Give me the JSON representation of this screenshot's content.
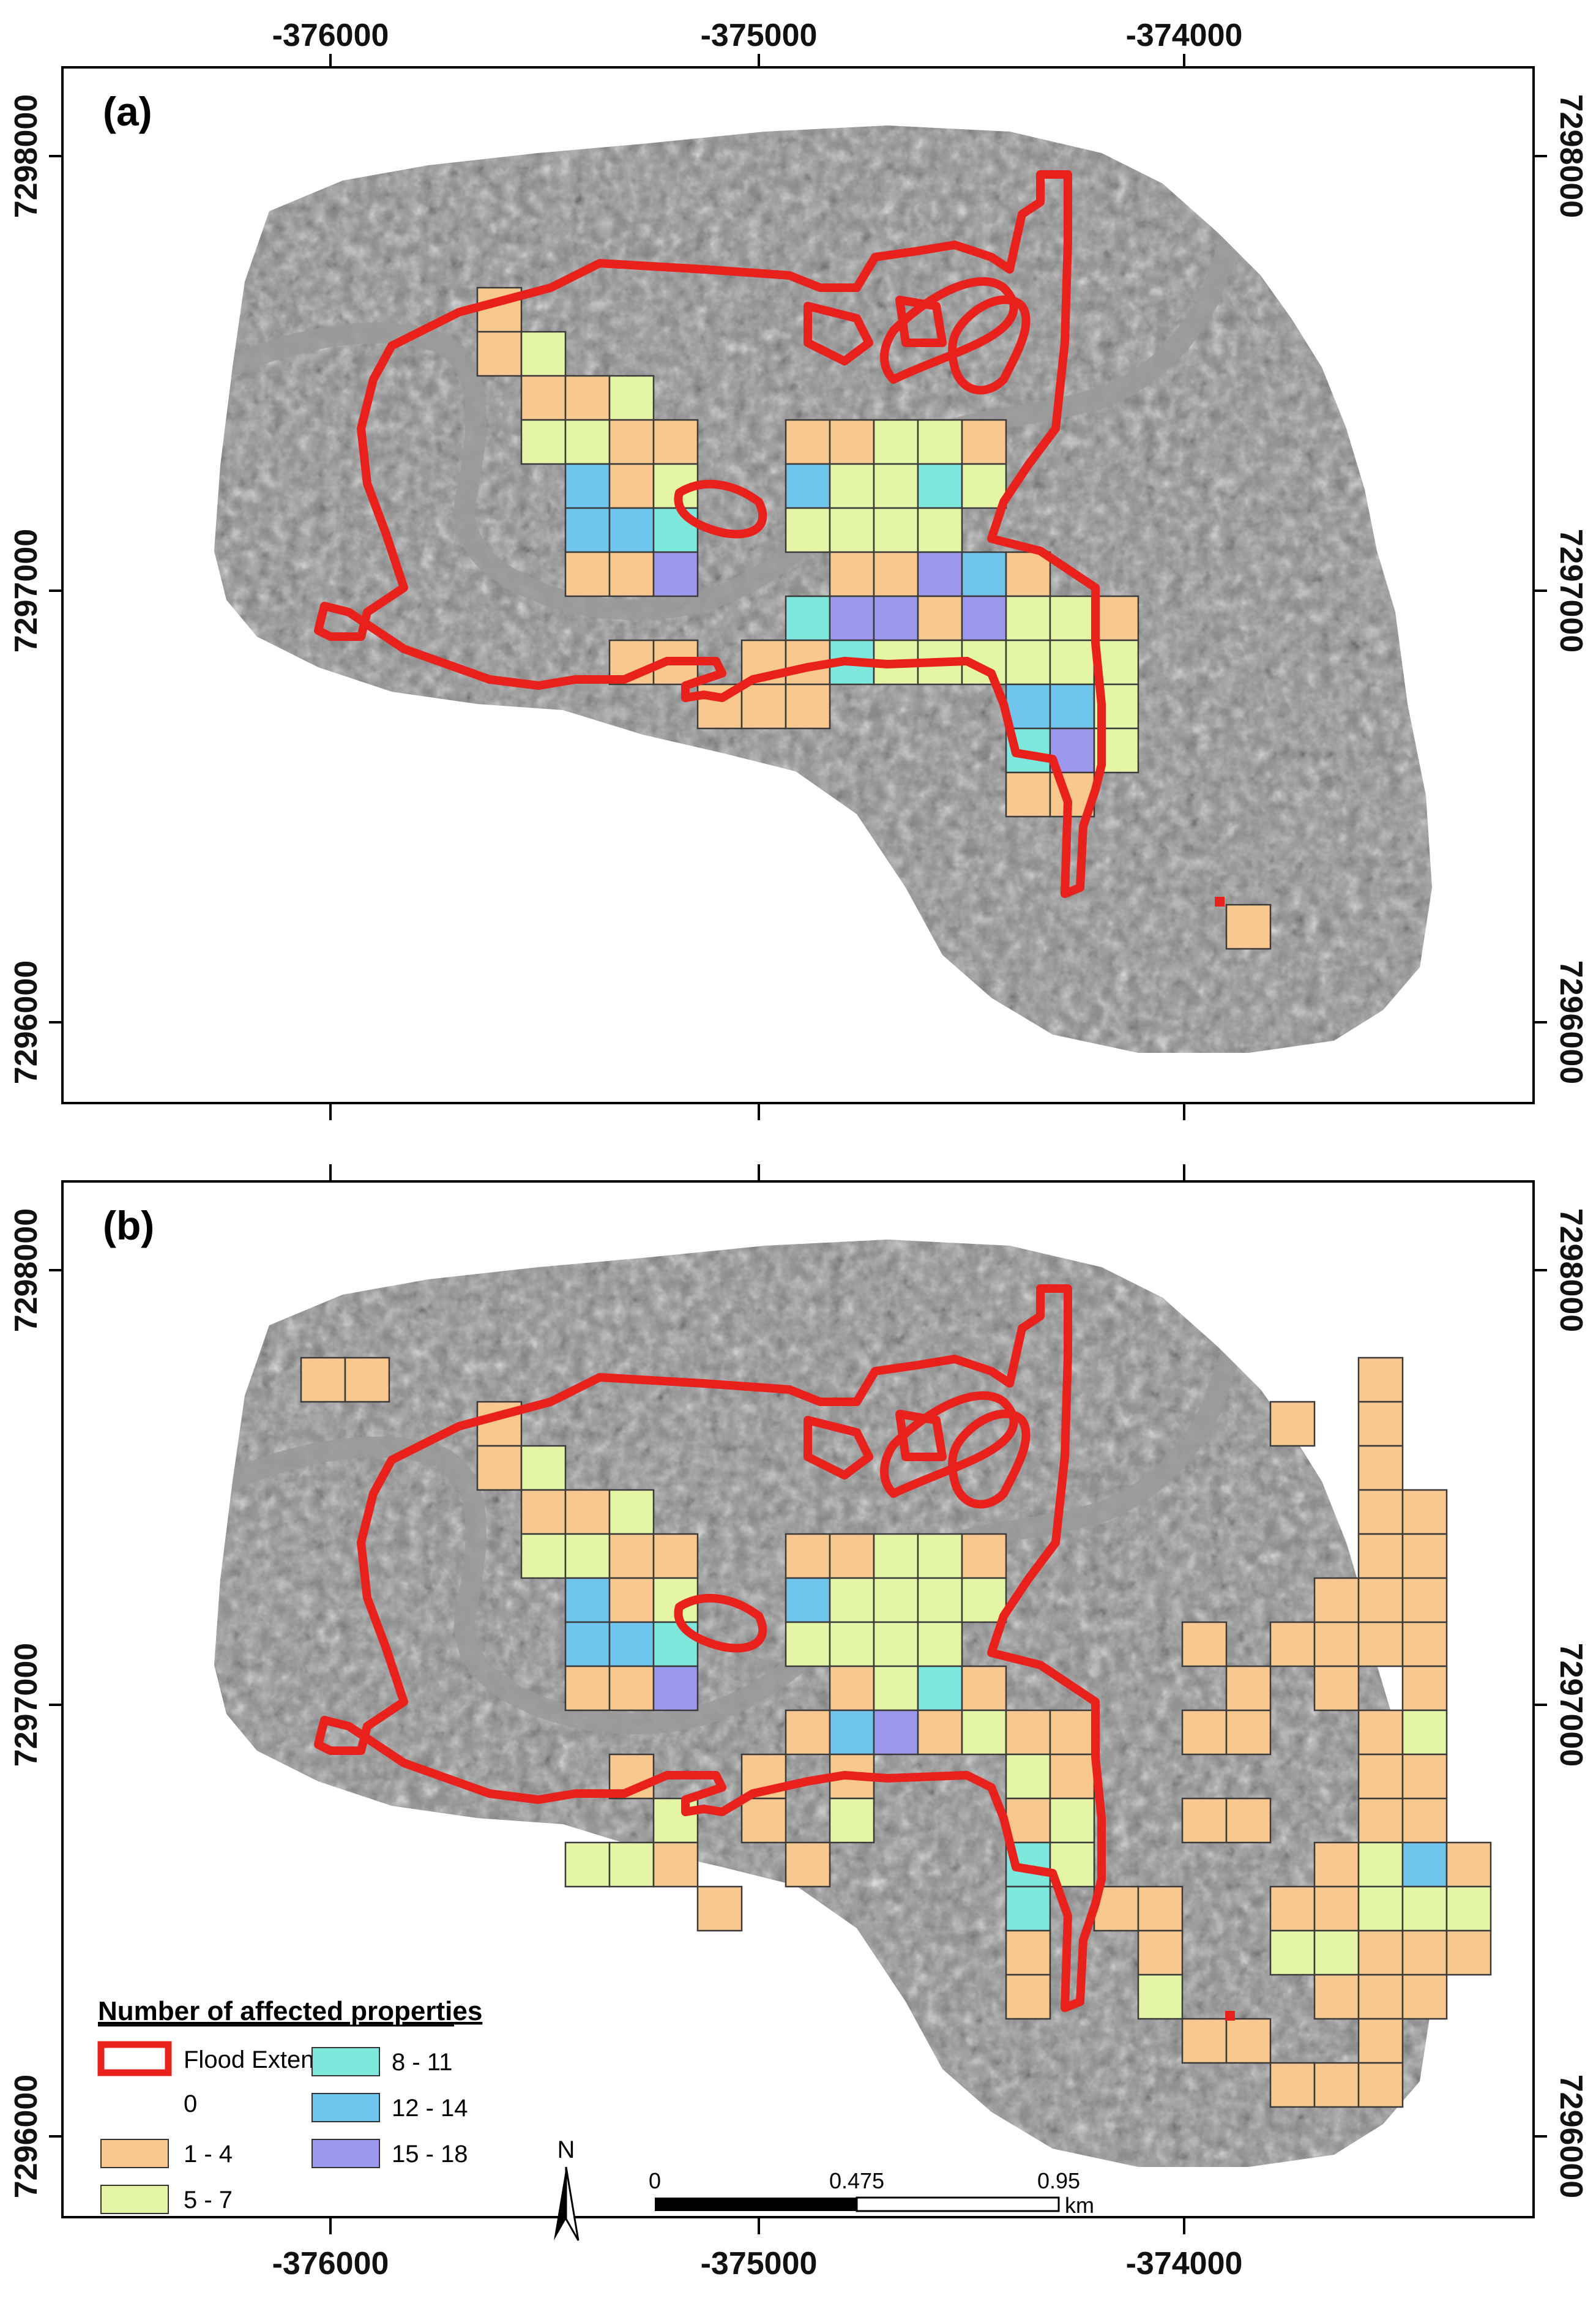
{
  "panels": [
    {
      "label": "(a)",
      "grid_cells": [
        {
          "col": 0,
          "row": 0,
          "class": "1-4"
        },
        {
          "col": 0,
          "row": 1,
          "class": "1-4"
        },
        {
          "col": 1,
          "row": 1,
          "class": "5-7"
        },
        {
          "col": 1,
          "row": 2,
          "class": "1-4"
        },
        {
          "col": 2,
          "row": 2,
          "class": "1-4"
        },
        {
          "col": 3,
          "row": 2,
          "class": "5-7"
        },
        {
          "col": 1,
          "row": 3,
          "class": "5-7"
        },
        {
          "col": 2,
          "row": 3,
          "class": "5-7"
        },
        {
          "col": 3,
          "row": 3,
          "class": "1-4"
        },
        {
          "col": 4,
          "row": 3,
          "class": "1-4"
        },
        {
          "col": 2,
          "row": 4,
          "class": "12-14"
        },
        {
          "col": 3,
          "row": 4,
          "class": "1-4"
        },
        {
          "col": 4,
          "row": 4,
          "class": "5-7"
        },
        {
          "col": 2,
          "row": 5,
          "class": "12-14"
        },
        {
          "col": 3,
          "row": 5,
          "class": "12-14"
        },
        {
          "col": 4,
          "row": 5,
          "class": "8-11"
        },
        {
          "col": 2,
          "row": 6,
          "class": "1-4"
        },
        {
          "col": 3,
          "row": 6,
          "class": "1-4"
        },
        {
          "col": 4,
          "row": 6,
          "class": "15-18"
        },
        {
          "col": 7,
          "row": 3,
          "class": "1-4"
        },
        {
          "col": 8,
          "row": 3,
          "class": "1-4"
        },
        {
          "col": 9,
          "row": 3,
          "class": "5-7"
        },
        {
          "col": 10,
          "row": 3,
          "class": "5-7"
        },
        {
          "col": 11,
          "row": 3,
          "class": "1-4"
        },
        {
          "col": 7,
          "row": 4,
          "class": "12-14"
        },
        {
          "col": 8,
          "row": 4,
          "class": "5-7"
        },
        {
          "col": 9,
          "row": 4,
          "class": "5-7"
        },
        {
          "col": 10,
          "row": 4,
          "class": "8-11"
        },
        {
          "col": 11,
          "row": 4,
          "class": "5-7"
        },
        {
          "col": 7,
          "row": 5,
          "class": "5-7"
        },
        {
          "col": 8,
          "row": 5,
          "class": "5-7"
        },
        {
          "col": 9,
          "row": 5,
          "class": "5-7"
        },
        {
          "col": 10,
          "row": 5,
          "class": "5-7"
        },
        {
          "col": 8,
          "row": 6,
          "class": "1-4"
        },
        {
          "col": 9,
          "row": 6,
          "class": "1-4"
        },
        {
          "col": 10,
          "row": 6,
          "class": "15-18"
        },
        {
          "col": 11,
          "row": 6,
          "class": "12-14"
        },
        {
          "col": 12,
          "row": 6,
          "class": "1-4"
        },
        {
          "col": 7,
          "row": 7,
          "class": "8-11"
        },
        {
          "col": 8,
          "row": 7,
          "class": "15-18"
        },
        {
          "col": 9,
          "row": 7,
          "class": "15-18"
        },
        {
          "col": 10,
          "row": 7,
          "class": "1-4"
        },
        {
          "col": 11,
          "row": 7,
          "class": "15-18"
        },
        {
          "col": 12,
          "row": 7,
          "class": "5-7"
        },
        {
          "col": 13,
          "row": 7,
          "class": "5-7"
        },
        {
          "col": 14,
          "row": 7,
          "class": "1-4"
        },
        {
          "col": 3,
          "row": 8,
          "class": "1-4"
        },
        {
          "col": 4,
          "row": 8,
          "class": "1-4"
        },
        {
          "col": 6,
          "row": 8,
          "class": "1-4"
        },
        {
          "col": 7,
          "row": 8,
          "class": "1-4"
        },
        {
          "col": 8,
          "row": 8,
          "class": "8-11"
        },
        {
          "col": 9,
          "row": 8,
          "class": "5-7"
        },
        {
          "col": 10,
          "row": 8,
          "class": "5-7"
        },
        {
          "col": 11,
          "row": 8,
          "class": "5-7"
        },
        {
          "col": 12,
          "row": 8,
          "class": "5-7"
        },
        {
          "col": 13,
          "row": 8,
          "class": "5-7"
        },
        {
          "col": 14,
          "row": 8,
          "class": "5-7"
        },
        {
          "col": 5,
          "row": 9,
          "class": "1-4"
        },
        {
          "col": 6,
          "row": 9,
          "class": "1-4"
        },
        {
          "col": 7,
          "row": 9,
          "class": "1-4"
        },
        {
          "col": 12,
          "row": 9,
          "class": "12-14"
        },
        {
          "col": 13,
          "row": 9,
          "class": "12-14"
        },
        {
          "col": 14,
          "row": 9,
          "class": "5-7"
        },
        {
          "col": 12,
          "row": 10,
          "class": "8-11"
        },
        {
          "col": 13,
          "row": 10,
          "class": "15-18"
        },
        {
          "col": 14,
          "row": 10,
          "class": "5-7"
        },
        {
          "col": 12,
          "row": 11,
          "class": "1-4"
        },
        {
          "col": 13,
          "row": 11,
          "class": "1-4"
        },
        {
          "col": 17,
          "row": 14,
          "class": "1-4"
        }
      ]
    },
    {
      "label": "(b)",
      "grid_cells": [
        {
          "col": -4,
          "row": -1,
          "class": "1-4"
        },
        {
          "col": -3,
          "row": -1,
          "class": "1-4"
        },
        {
          "col": 0,
          "row": 0,
          "class": "1-4"
        },
        {
          "col": 0,
          "row": 1,
          "class": "1-4"
        },
        {
          "col": 1,
          "row": 1,
          "class": "5-7"
        },
        {
          "col": 1,
          "row": 2,
          "class": "1-4"
        },
        {
          "col": 2,
          "row": 2,
          "class": "1-4"
        },
        {
          "col": 3,
          "row": 2,
          "class": "5-7"
        },
        {
          "col": 1,
          "row": 3,
          "class": "5-7"
        },
        {
          "col": 2,
          "row": 3,
          "class": "5-7"
        },
        {
          "col": 3,
          "row": 3,
          "class": "1-4"
        },
        {
          "col": 4,
          "row": 3,
          "class": "1-4"
        },
        {
          "col": 2,
          "row": 4,
          "class": "12-14"
        },
        {
          "col": 3,
          "row": 4,
          "class": "1-4"
        },
        {
          "col": 4,
          "row": 4,
          "class": "5-7"
        },
        {
          "col": 2,
          "row": 5,
          "class": "12-14"
        },
        {
          "col": 3,
          "row": 5,
          "class": "12-14"
        },
        {
          "col": 4,
          "row": 5,
          "class": "8-11"
        },
        {
          "col": 2,
          "row": 6,
          "class": "1-4"
        },
        {
          "col": 3,
          "row": 6,
          "class": "1-4"
        },
        {
          "col": 4,
          "row": 6,
          "class": "15-18"
        },
        {
          "col": 7,
          "row": 3,
          "class": "1-4"
        },
        {
          "col": 8,
          "row": 3,
          "class": "1-4"
        },
        {
          "col": 9,
          "row": 3,
          "class": "5-7"
        },
        {
          "col": 10,
          "row": 3,
          "class": "5-7"
        },
        {
          "col": 11,
          "row": 3,
          "class": "1-4"
        },
        {
          "col": 7,
          "row": 4,
          "class": "12-14"
        },
        {
          "col": 8,
          "row": 4,
          "class": "5-7"
        },
        {
          "col": 9,
          "row": 4,
          "class": "5-7"
        },
        {
          "col": 10,
          "row": 4,
          "class": "5-7"
        },
        {
          "col": 11,
          "row": 4,
          "class": "5-7"
        },
        {
          "col": 7,
          "row": 5,
          "class": "5-7"
        },
        {
          "col": 8,
          "row": 5,
          "class": "5-7"
        },
        {
          "col": 9,
          "row": 5,
          "class": "5-7"
        },
        {
          "col": 10,
          "row": 5,
          "class": "5-7"
        },
        {
          "col": 8,
          "row": 6,
          "class": "1-4"
        },
        {
          "col": 9,
          "row": 6,
          "class": "5-7"
        },
        {
          "col": 10,
          "row": 6,
          "class": "8-11"
        },
        {
          "col": 11,
          "row": 6,
          "class": "1-4"
        },
        {
          "col": 7,
          "row": 7,
          "class": "1-4"
        },
        {
          "col": 8,
          "row": 7,
          "class": "12-14"
        },
        {
          "col": 9,
          "row": 7,
          "class": "15-18"
        },
        {
          "col": 10,
          "row": 7,
          "class": "1-4"
        },
        {
          "col": 11,
          "row": 7,
          "class": "5-7"
        },
        {
          "col": 12,
          "row": 7,
          "class": "1-4"
        },
        {
          "col": 13,
          "row": 7,
          "class": "1-4"
        },
        {
          "col": 3,
          "row": 8,
          "class": "1-4"
        },
        {
          "col": 6,
          "row": 8,
          "class": "1-4"
        },
        {
          "col": 8,
          "row": 8,
          "class": "1-4"
        },
        {
          "col": 12,
          "row": 8,
          "class": "5-7"
        },
        {
          "col": 13,
          "row": 8,
          "class": "1-4"
        },
        {
          "col": 4,
          "row": 9,
          "class": "5-7"
        },
        {
          "col": 6,
          "row": 9,
          "class": "1-4"
        },
        {
          "col": 8,
          "row": 9,
          "class": "5-7"
        },
        {
          "col": 12,
          "row": 9,
          "class": "1-4"
        },
        {
          "col": 13,
          "row": 9,
          "class": "5-7"
        },
        {
          "col": 2,
          "row": 10,
          "class": "5-7"
        },
        {
          "col": 3,
          "row": 10,
          "class": "5-7"
        },
        {
          "col": 4,
          "row": 10,
          "class": "1-4"
        },
        {
          "col": 7,
          "row": 10,
          "class": "1-4"
        },
        {
          "col": 12,
          "row": 10,
          "class": "8-11"
        },
        {
          "col": 13,
          "row": 10,
          "class": "5-7"
        },
        {
          "col": 5,
          "row": 11,
          "class": "1-4"
        },
        {
          "col": 12,
          "row": 11,
          "class": "8-11"
        },
        {
          "col": 14,
          "row": 11,
          "class": "1-4"
        },
        {
          "col": 15,
          "row": 11,
          "class": "1-4"
        },
        {
          "col": 12,
          "row": 12,
          "class": "1-4"
        },
        {
          "col": 15,
          "row": 12,
          "class": "1-4"
        },
        {
          "col": 12,
          "row": 13,
          "class": "1-4"
        },
        {
          "col": 15,
          "row": 13,
          "class": "5-7"
        },
        {
          "col": 16,
          "row": 14,
          "class": "1-4"
        },
        {
          "col": 17,
          "row": 14,
          "class": "1-4"
        },
        {
          "col": 16,
          "row": 7,
          "class": "1-4"
        },
        {
          "col": 17,
          "row": 7,
          "class": "1-4"
        },
        {
          "col": 16,
          "row": 5,
          "class": "1-4"
        },
        {
          "col": 18,
          "row": 5,
          "class": "1-4"
        },
        {
          "col": 19,
          "row": 5,
          "class": "1-4"
        },
        {
          "col": 20,
          "row": 5,
          "class": "1-4"
        },
        {
          "col": 21,
          "row": 5,
          "class": "1-4"
        },
        {
          "col": 17,
          "row": 6,
          "class": "1-4"
        },
        {
          "col": 19,
          "row": 6,
          "class": "1-4"
        },
        {
          "col": 21,
          "row": 6,
          "class": "1-4"
        },
        {
          "col": 16,
          "row": 9,
          "class": "1-4"
        },
        {
          "col": 17,
          "row": 9,
          "class": "1-4"
        },
        {
          "col": 20,
          "row": 9,
          "class": "1-4"
        },
        {
          "col": 21,
          "row": 9,
          "class": "1-4"
        },
        {
          "col": 20,
          "row": -1,
          "class": "1-4"
        },
        {
          "col": 18,
          "row": 0,
          "class": "1-4"
        },
        {
          "col": 20,
          "row": 0,
          "class": "1-4"
        },
        {
          "col": 20,
          "row": 1,
          "class": "1-4"
        },
        {
          "col": 20,
          "row": 2,
          "class": "1-4"
        },
        {
          "col": 21,
          "row": 2,
          "class": "1-4"
        },
        {
          "col": 20,
          "row": 3,
          "class": "1-4"
        },
        {
          "col": 21,
          "row": 3,
          "class": "1-4"
        },
        {
          "col": 19,
          "row": 4,
          "class": "1-4"
        },
        {
          "col": 20,
          "row": 4,
          "class": "1-4"
        },
        {
          "col": 21,
          "row": 4,
          "class": "1-4"
        },
        {
          "col": 20,
          "row": 7,
          "class": "1-4"
        },
        {
          "col": 21,
          "row": 7,
          "class": "5-7"
        },
        {
          "col": 20,
          "row": 8,
          "class": "1-4"
        },
        {
          "col": 21,
          "row": 8,
          "class": "1-4"
        },
        {
          "col": 19,
          "row": 10,
          "class": "1-4"
        },
        {
          "col": 20,
          "row": 10,
          "class": "5-7"
        },
        {
          "col": 21,
          "row": 10,
          "class": "12-14"
        },
        {
          "col": 22,
          "row": 10,
          "class": "1-4"
        },
        {
          "col": 18,
          "row": 11,
          "class": "1-4"
        },
        {
          "col": 19,
          "row": 11,
          "class": "1-4"
        },
        {
          "col": 20,
          "row": 11,
          "class": "5-7"
        },
        {
          "col": 21,
          "row": 11,
          "class": "5-7"
        },
        {
          "col": 22,
          "row": 11,
          "class": "5-7"
        },
        {
          "col": 18,
          "row": 12,
          "class": "5-7"
        },
        {
          "col": 19,
          "row": 12,
          "class": "5-7"
        },
        {
          "col": 20,
          "row": 12,
          "class": "1-4"
        },
        {
          "col": 21,
          "row": 12,
          "class": "1-4"
        },
        {
          "col": 22,
          "row": 12,
          "class": "1-4"
        },
        {
          "col": 19,
          "row": 13,
          "class": "1-4"
        },
        {
          "col": 20,
          "row": 13,
          "class": "1-4"
        },
        {
          "col": 21,
          "row": 13,
          "class": "1-4"
        },
        {
          "col": 20,
          "row": 14,
          "class": "1-4"
        },
        {
          "col": 18,
          "row": 15,
          "class": "1-4"
        },
        {
          "col": 19,
          "row": 15,
          "class": "1-4"
        },
        {
          "col": 20,
          "row": 15,
          "class": "1-4"
        }
      ]
    }
  ],
  "axes": {
    "x_ticks": [
      "-376000",
      "-375000",
      "-374000"
    ],
    "y_ticks": [
      "7298000",
      "7297000",
      "7296000"
    ]
  },
  "legend": {
    "title": "Number of affected properties",
    "flood_extent_label": "Flood Extent",
    "classes": [
      {
        "label": "0",
        "color": "#ffffff00"
      },
      {
        "label": "1 - 4",
        "color": "#f9c88e"
      },
      {
        "label": "5 - 7",
        "color": "#e4f5a6"
      },
      {
        "label": "8 - 11",
        "color": "#7ee8dc"
      },
      {
        "label": "12 - 14",
        "color": "#6fc5ec"
      },
      {
        "label": "15 - 18",
        "color": "#9c98ee"
      }
    ]
  },
  "scale_bar": {
    "labels": [
      "0",
      "0.475",
      "0.95"
    ],
    "unit": "km"
  },
  "north_arrow": {
    "label": "N",
    "icon": "north-arrow-icon"
  },
  "colors": {
    "flood_extent": "#e8211d",
    "class_1_4": "#f9c88e",
    "class_5_7": "#e4f5a6",
    "class_8_11": "#7ee8dc",
    "class_12_14": "#6fc5ec",
    "class_15_18": "#9c98ee"
  }
}
